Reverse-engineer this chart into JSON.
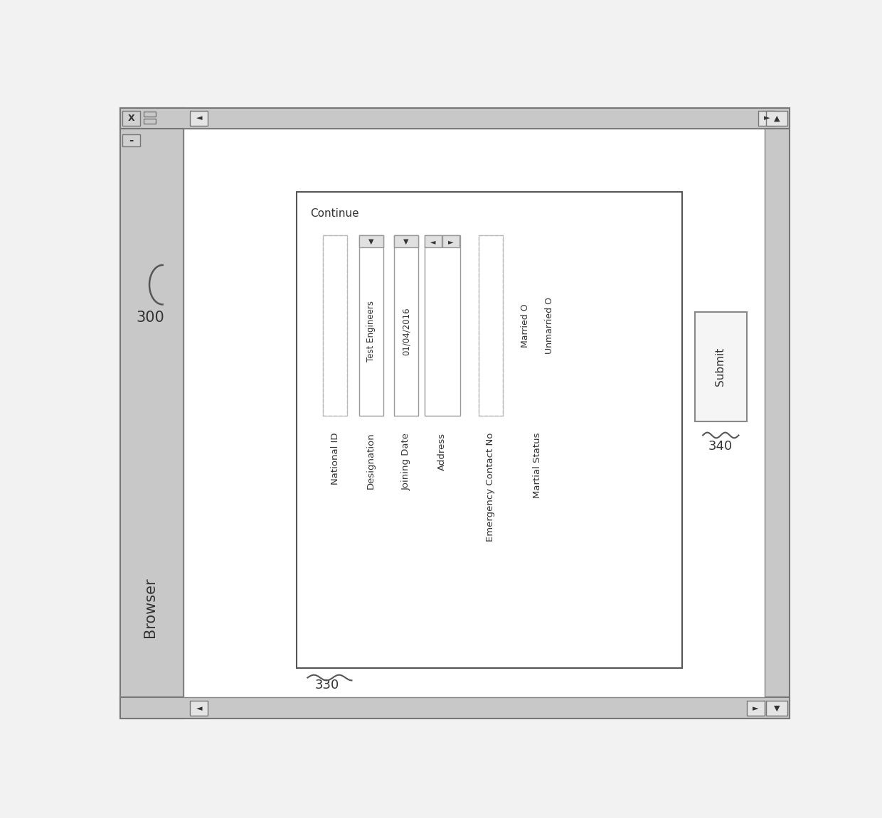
{
  "bg_color": "#f2f2f2",
  "gray_bar": "#c8c8c8",
  "white": "#ffffff",
  "light_gray": "#e0e0e0",
  "border": "#888888",
  "dark_border": "#555555",
  "text_color": "#333333",
  "browser_label": "Browser",
  "number_300": "300",
  "form_title": "Continue",
  "label_330": "330",
  "label_340": "340",
  "submit_text": "Submit",
  "fields": [
    {
      "label": "National ID",
      "type": "plain",
      "value": ""
    },
    {
      "label": "Designation",
      "type": "dropdown",
      "value": "Test Engineers"
    },
    {
      "label": "Joining Date",
      "type": "dropdown",
      "value": "01/04/2016"
    },
    {
      "label": "Address",
      "type": "spinbox",
      "value": ""
    },
    {
      "label": "Emergency Contact No",
      "type": "plain",
      "value": ""
    },
    {
      "label": "Martial Status",
      "type": "radio",
      "options": [
        "Married O",
        "Unmarried O"
      ]
    }
  ]
}
